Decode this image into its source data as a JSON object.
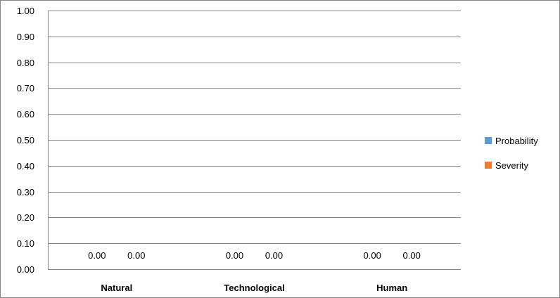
{
  "chart_data": {
    "type": "bar",
    "categories": [
      "Natural",
      "Technological",
      "Human"
    ],
    "series": [
      {
        "name": "Probability",
        "values": [
          0.0,
          0.0,
          0.0
        ],
        "labels": [
          "0.00",
          "0.00",
          "0.00"
        ]
      },
      {
        "name": "Severity",
        "values": [
          0.0,
          0.0,
          0.0
        ],
        "labels": [
          "0.00",
          "0.00",
          "0.00"
        ]
      }
    ],
    "yticks": [
      "0.00",
      "0.10",
      "0.20",
      "0.30",
      "0.40",
      "0.50",
      "0.60",
      "0.70",
      "0.80",
      "0.90",
      "1.00"
    ],
    "ylim": [
      0,
      1
    ],
    "grid": true,
    "legend_position": "right",
    "colors": {
      "Probability": "#5b9bd5",
      "Severity": "#ed7d31",
      "grid": "#868686",
      "frame": "#868686"
    }
  }
}
